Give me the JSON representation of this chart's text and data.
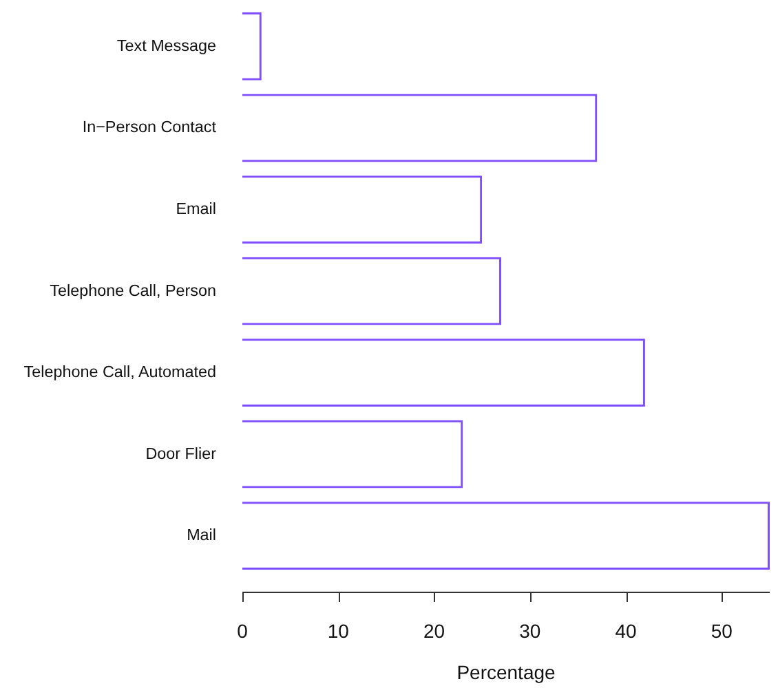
{
  "chart_data": {
    "type": "bar",
    "orientation": "horizontal",
    "categories": [
      "Text Message",
      "In−Person Contact",
      "Email",
      "Telephone Call, Person",
      "Telephone Call, Automated",
      "Door Flier",
      "Mail"
    ],
    "values": [
      2,
      37,
      25,
      27,
      42,
      23,
      55
    ],
    "color": "#7f4fff",
    "xlabel": "Percentage",
    "xlim": [
      0,
      55
    ],
    "xticks": [
      0,
      10,
      20,
      30,
      40,
      50
    ]
  }
}
